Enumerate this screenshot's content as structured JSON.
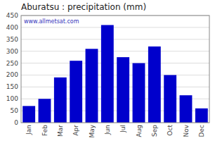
{
  "chart_data": {
    "type": "bar",
    "title": "Aburatsu : precipitation (mm)",
    "categories": [
      "Jan",
      "Feb",
      "Mar",
      "Apr",
      "May",
      "Jun",
      "Jul",
      "Aug",
      "Sep",
      "Oct",
      "Nov",
      "Dec"
    ],
    "values": [
      70,
      100,
      190,
      260,
      310,
      410,
      275,
      250,
      320,
      200,
      115,
      60
    ],
    "color": "#0000CC",
    "ylim": [
      0,
      450
    ],
    "yticks": [
      0,
      50,
      100,
      150,
      200,
      250,
      300,
      350,
      400,
      450
    ],
    "grid": true,
    "annotations": [
      "www.allmetsat.com"
    ]
  }
}
